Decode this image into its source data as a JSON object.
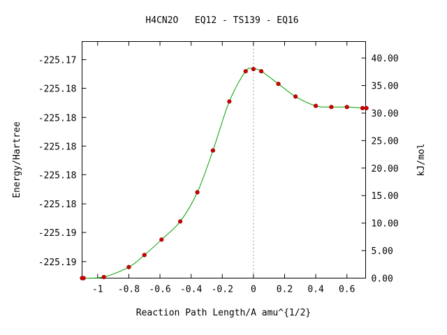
{
  "chart_data": {
    "type": "line",
    "title": "H4CN2O   EQ12 - TS139 - EQ16",
    "xlabel": "Reaction Path Length/A amu^{1/2}",
    "ylabel": "Energy/Hartree",
    "y2label": "kJ/mol",
    "xlim": [
      -1.1,
      0.72
    ],
    "ylim_kjmol": [
      0,
      43
    ],
    "x_ticks": [
      -1,
      -0.8,
      -0.6,
      -0.4,
      -0.2,
      0,
      0.2,
      0.4,
      0.6
    ],
    "x_tick_labels": [
      "-1",
      "-0.8",
      "-0.6",
      "-0.4",
      "-0.2",
      "0",
      "0.2",
      "0.4",
      "0.6"
    ],
    "y_left_ticks_kjmol": [
      3,
      8.3,
      13.5,
      18.8,
      24,
      29.2,
      34.5,
      39.7
    ],
    "y_left_tick_labels": [
      "-225.19",
      "-225.19",
      "-225.18",
      "-225.18",
      "-225.18",
      "-225.18",
      "-225.18",
      "-225.17"
    ],
    "y_right_ticks": [
      0,
      5,
      10,
      15,
      20,
      25,
      30,
      35,
      40
    ],
    "y_right_tick_labels": [
      "0.00",
      "5.00",
      "10.00",
      "15.00",
      "20.00",
      "25.00",
      "30.00",
      "35.00",
      "40.00"
    ],
    "ts_marker_x": 0,
    "series": [
      {
        "color": "#00a000",
        "marker_color": "#d00000",
        "x": [
          -1.1,
          -1.09,
          -0.96,
          -0.8,
          -0.7,
          -0.59,
          -0.47,
          -0.36,
          -0.26,
          -0.155,
          -0.05,
          0,
          0.05,
          0.16,
          0.27,
          0.4,
          0.5,
          0.6,
          0.7,
          0.725
        ],
        "y": [
          0.0,
          0.0,
          0.2,
          2.0,
          4.2,
          7.0,
          10.3,
          15.6,
          23.2,
          32.1,
          37.6,
          38.0,
          37.6,
          35.3,
          33.0,
          31.3,
          31.1,
          31.1,
          30.9,
          30.9
        ]
      }
    ]
  }
}
